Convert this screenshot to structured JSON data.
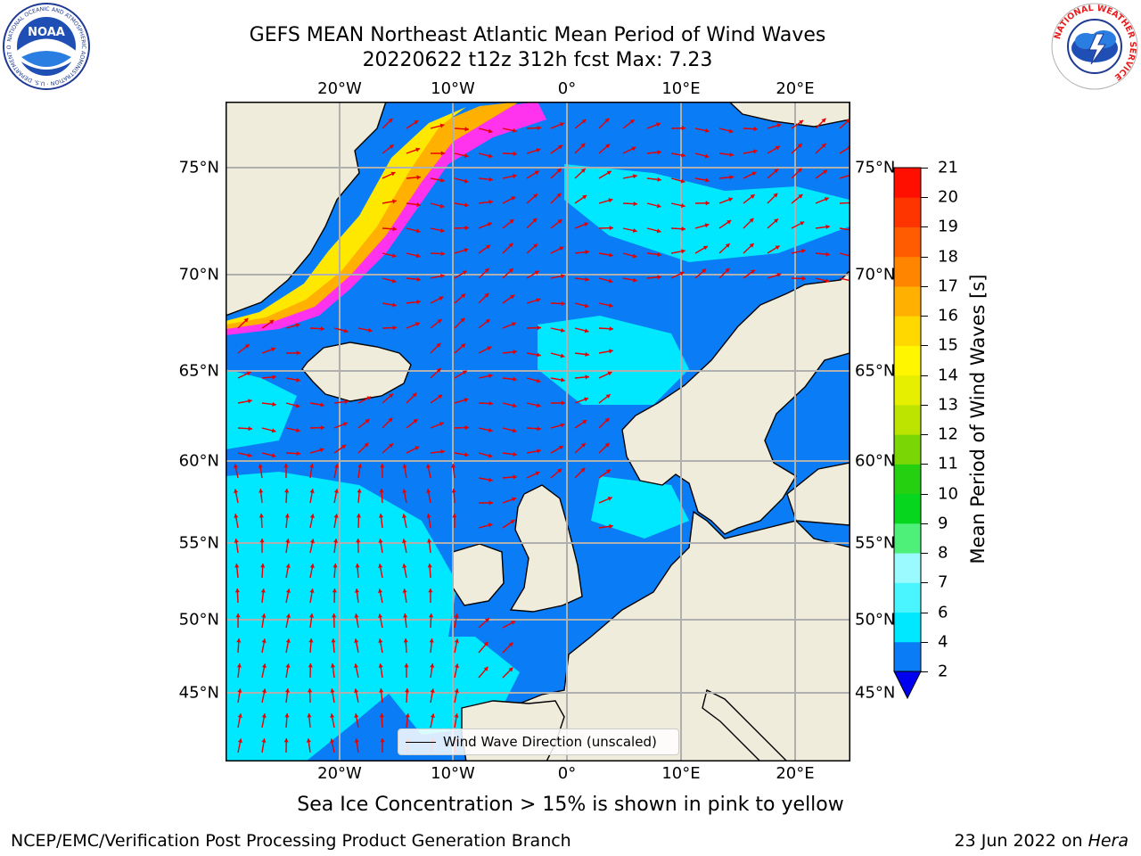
{
  "title": {
    "line1": "GEFS MEAN Northeast Atlantic Mean Period of Wind Waves",
    "line2": "20220622 t12z 312h fcst   Max: 7.23"
  },
  "axes": {
    "lon_ticks": [
      "20°W",
      "10°W",
      "0°",
      "10°E",
      "20°E"
    ],
    "lat_ticks": [
      "75°N",
      "70°N",
      "65°N",
      "60°N",
      "55°N",
      "50°N",
      "45°N"
    ]
  },
  "legend": {
    "label": "Wind Wave Direction (unscaled)"
  },
  "colorbar": {
    "label": "Mean Period of Wind Waves [s]",
    "ticks": [
      "2",
      "4",
      "6",
      "7",
      "8",
      "9",
      "10",
      "11",
      "12",
      "13",
      "14",
      "15",
      "16",
      "17",
      "18",
      "19",
      "20",
      "21"
    ],
    "colors": [
      "#0a7cf5",
      "#00e8ff",
      "#4bf5ff",
      "#9afaff",
      "#4ff07a",
      "#06d61e",
      "#25d010",
      "#7ad705",
      "#bde300",
      "#e7ef00",
      "#fff600",
      "#ffd800",
      "#ffb000",
      "#ff8400",
      "#ff5b00",
      "#ff3500",
      "#ff0f00"
    ],
    "extend_color": "#0000f0"
  },
  "note": "Sea Ice Concentration > 15% is shown in pink to yellow",
  "footer": {
    "credit": "NCEP/EMC/Verification Post Processing Product Generation Branch",
    "date_prefix": "23 Jun 2022 on",
    "date_machine": "Hera"
  },
  "logos": {
    "noaa_text": "NOAA",
    "noaa_ring": "NATIONAL OCEANIC AND ATMOSPHERIC ADMINISTRATION · U.S. DEPARTMENT OF COMMERCE",
    "nws_ring": "NATIONAL WEATHER SERVICE"
  },
  "map_colors": {
    "ocean": "#0a7cf5",
    "ocean_light": "#00e8ff",
    "land": "#efecdc",
    "ice_pink": "#ff33ee",
    "ice_orange": "#ffb000",
    "ice_yellow": "#ffe800",
    "arrow": "#e80000",
    "grid": "#b0b0b0"
  }
}
